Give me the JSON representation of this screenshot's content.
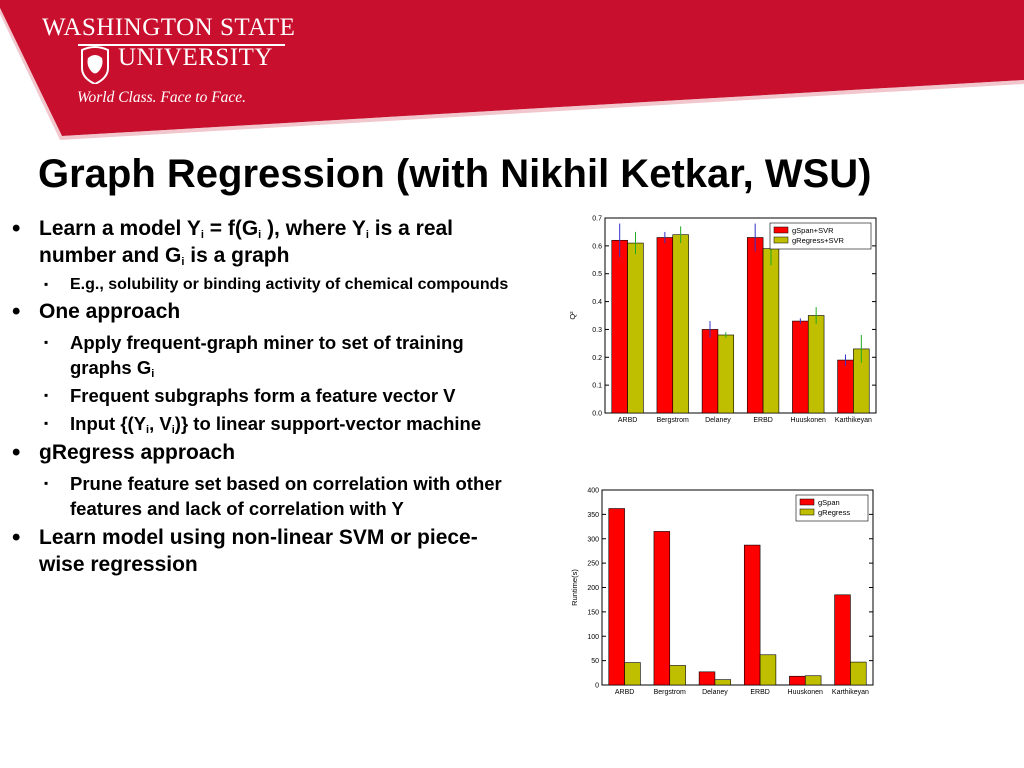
{
  "header": {
    "wordmark": "WASHINGTON STATE",
    "university": "UNIVERSITY",
    "tagline": "World Class. Face to Face.",
    "brand_color": "#c8102e"
  },
  "slide": {
    "title": "Graph Regression (with Nikhil Ketkar, WSU)",
    "bullets": {
      "b1_a": "Learn a model Y",
      "b1_sub1": "i",
      "b1_b": " = f(G",
      "b1_sub2": "i",
      "b1_c": " ), where Y",
      "b1_sub3": "i",
      "b1_d": " is a real number and G",
      "b1_sub4": "i",
      "b1_e": " is a graph",
      "b1_1": "E.g., solubility or binding activity of chemical compounds",
      "b2": "One approach",
      "b2_1_a": "Apply frequent-graph miner to set of training graphs G",
      "b2_1_sub": "i",
      "b2_2": "Frequent subgraphs form a feature vector V",
      "b2_3_a": "Input {(Y",
      "b2_3_sub1": "i",
      "b2_3_b": ", V",
      "b2_3_sub2": "i",
      "b2_3_c": ")} to linear support-vector machine",
      "b3": "gRegress approach",
      "b3_1": "Prune feature set based on correlation with other features and lack of correlation with Y",
      "b4": "Learn model using non-linear SVM or piece-wise regression"
    }
  },
  "chart_data": [
    {
      "type": "bar",
      "categories": [
        "ARBD",
        "Bergstrom",
        "Delaney",
        "ERBD",
        "Huuskonen",
        "Karthikeyan"
      ],
      "ylabel": "Q²",
      "ylim": [
        0,
        0.7
      ],
      "yticks": [
        "0.0",
        "0.1",
        "0.2",
        "0.3",
        "0.4",
        "0.5",
        "0.6",
        "0.7"
      ],
      "legend_position": "top-right",
      "series": [
        {
          "name": "gSpan+SVR",
          "color": "#ff0000",
          "error_color": "#3333cc",
          "values": [
            0.62,
            0.63,
            0.3,
            0.63,
            0.33,
            0.19
          ],
          "errors": [
            0.06,
            0.02,
            0.03,
            0.05,
            0.01,
            0.02
          ]
        },
        {
          "name": "gRegress+SVR",
          "color": "#bfbf00",
          "error_color": "#22aa22",
          "values": [
            0.61,
            0.64,
            0.28,
            0.59,
            0.35,
            0.23
          ],
          "errors": [
            0.04,
            0.03,
            0.01,
            0.06,
            0.03,
            0.05
          ]
        }
      ]
    },
    {
      "type": "bar",
      "categories": [
        "ARBD",
        "Bergstrom",
        "Delaney",
        "ERBD",
        "Huuskonen",
        "Karthikeyan"
      ],
      "ylabel": "Runtime(s)",
      "ylim": [
        0,
        400
      ],
      "yticks": [
        "0",
        "50",
        "100",
        "150",
        "200",
        "250",
        "300",
        "350",
        "400"
      ],
      "legend_position": "top-right",
      "series": [
        {
          "name": "gSpan",
          "color": "#ff0000",
          "values": [
            362,
            315,
            27,
            287,
            18,
            185
          ]
        },
        {
          "name": "gRegress",
          "color": "#bfbf00",
          "values": [
            46,
            40,
            11,
            62,
            19,
            47
          ]
        }
      ]
    }
  ]
}
